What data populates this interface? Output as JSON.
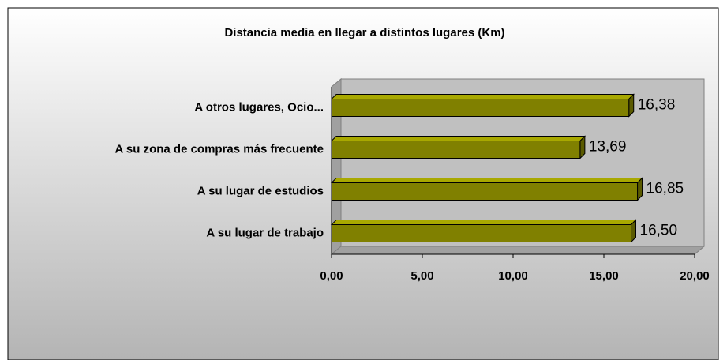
{
  "chart_data": {
    "type": "bar",
    "orientation": "horizontal",
    "title": "Distancia media en llegar a distintos lugares (Km)",
    "categories": [
      "A otros lugares, Ocio...",
      "A su zona de compras más frecuente",
      "A su lugar de estudios",
      "A su lugar de trabajo"
    ],
    "values": [
      16.38,
      13.69,
      16.85,
      16.5
    ],
    "value_labels": [
      "16,38",
      "13,69",
      "16,85",
      "16,50"
    ],
    "color": "#808000",
    "xlim": [
      0,
      20
    ],
    "xticks": [
      {
        "value": 0,
        "label": "0,00"
      },
      {
        "value": 5,
        "label": "5,00"
      },
      {
        "value": 10,
        "label": "10,00"
      },
      {
        "value": 15,
        "label": "15,00"
      },
      {
        "value": 20,
        "label": "20,00"
      }
    ],
    "grid": false
  }
}
